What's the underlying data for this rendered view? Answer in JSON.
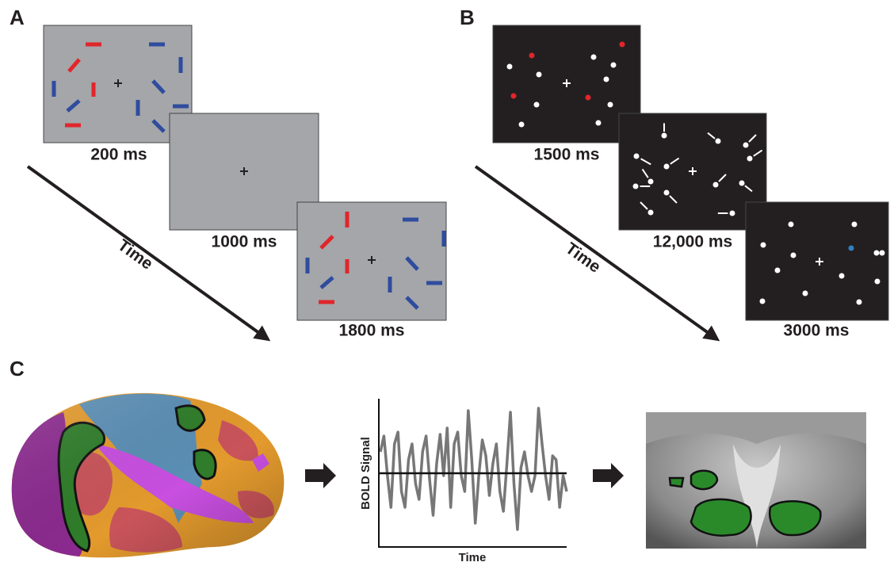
{
  "panels": [
    {
      "label": "A",
      "frames": [
        {
          "duration": "200 ms"
        },
        {
          "duration": "1000 ms"
        },
        {
          "duration": "1800 ms"
        }
      ],
      "axis_label": "Time"
    },
    {
      "label": "B",
      "frames": [
        {
          "duration": "1500 ms"
        },
        {
          "duration": "12,000 ms"
        },
        {
          "duration": "3000 ms"
        }
      ],
      "axis_label": "Time"
    },
    {
      "label": "C",
      "plot": {
        "y_label": "BOLD Signal",
        "x_label": "Time"
      }
    }
  ]
}
